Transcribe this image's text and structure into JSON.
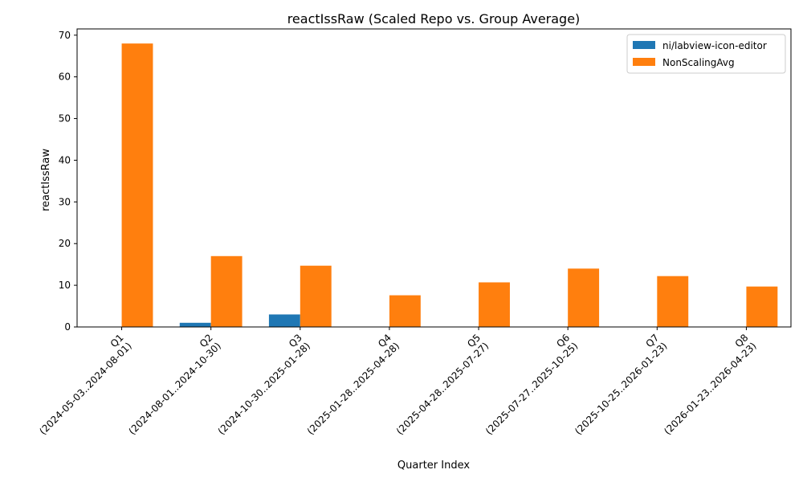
{
  "chart_data": {
    "type": "bar",
    "title": "reactIssRaw (Scaled Repo vs. Group Average)",
    "xlabel": "Quarter Index",
    "ylabel": "reactIssRaw",
    "ylim": [
      0,
      71.5
    ],
    "yticks": [
      0,
      10,
      20,
      30,
      40,
      50,
      60,
      70
    ],
    "grid": false,
    "legend_position": "top-right",
    "categories": [
      "Q1\n(2024-05-03..2024-08-01)",
      "Q2\n(2024-08-01..2024-10-30)",
      "Q3\n(2024-10-30..2025-01-28)",
      "Q4\n(2025-01-28..2025-04-28)",
      "Q5\n(2025-04-28..2025-07-27)",
      "Q6\n(2025-07-27..2025-10-25)",
      "Q7\n(2025-10-25..2026-01-23)",
      "Q8\n(2026-01-23..2026-04-23)"
    ],
    "series": [
      {
        "name": "ni/labview-icon-editor",
        "color": "#1f77b4",
        "values": [
          0,
          1,
          3,
          0,
          0,
          0,
          0,
          0
        ]
      },
      {
        "name": "NonScalingAvg",
        "color": "#ff7f0e",
        "values": [
          68,
          17,
          14.7,
          7.6,
          10.7,
          14,
          12.2,
          9.7
        ]
      }
    ]
  }
}
